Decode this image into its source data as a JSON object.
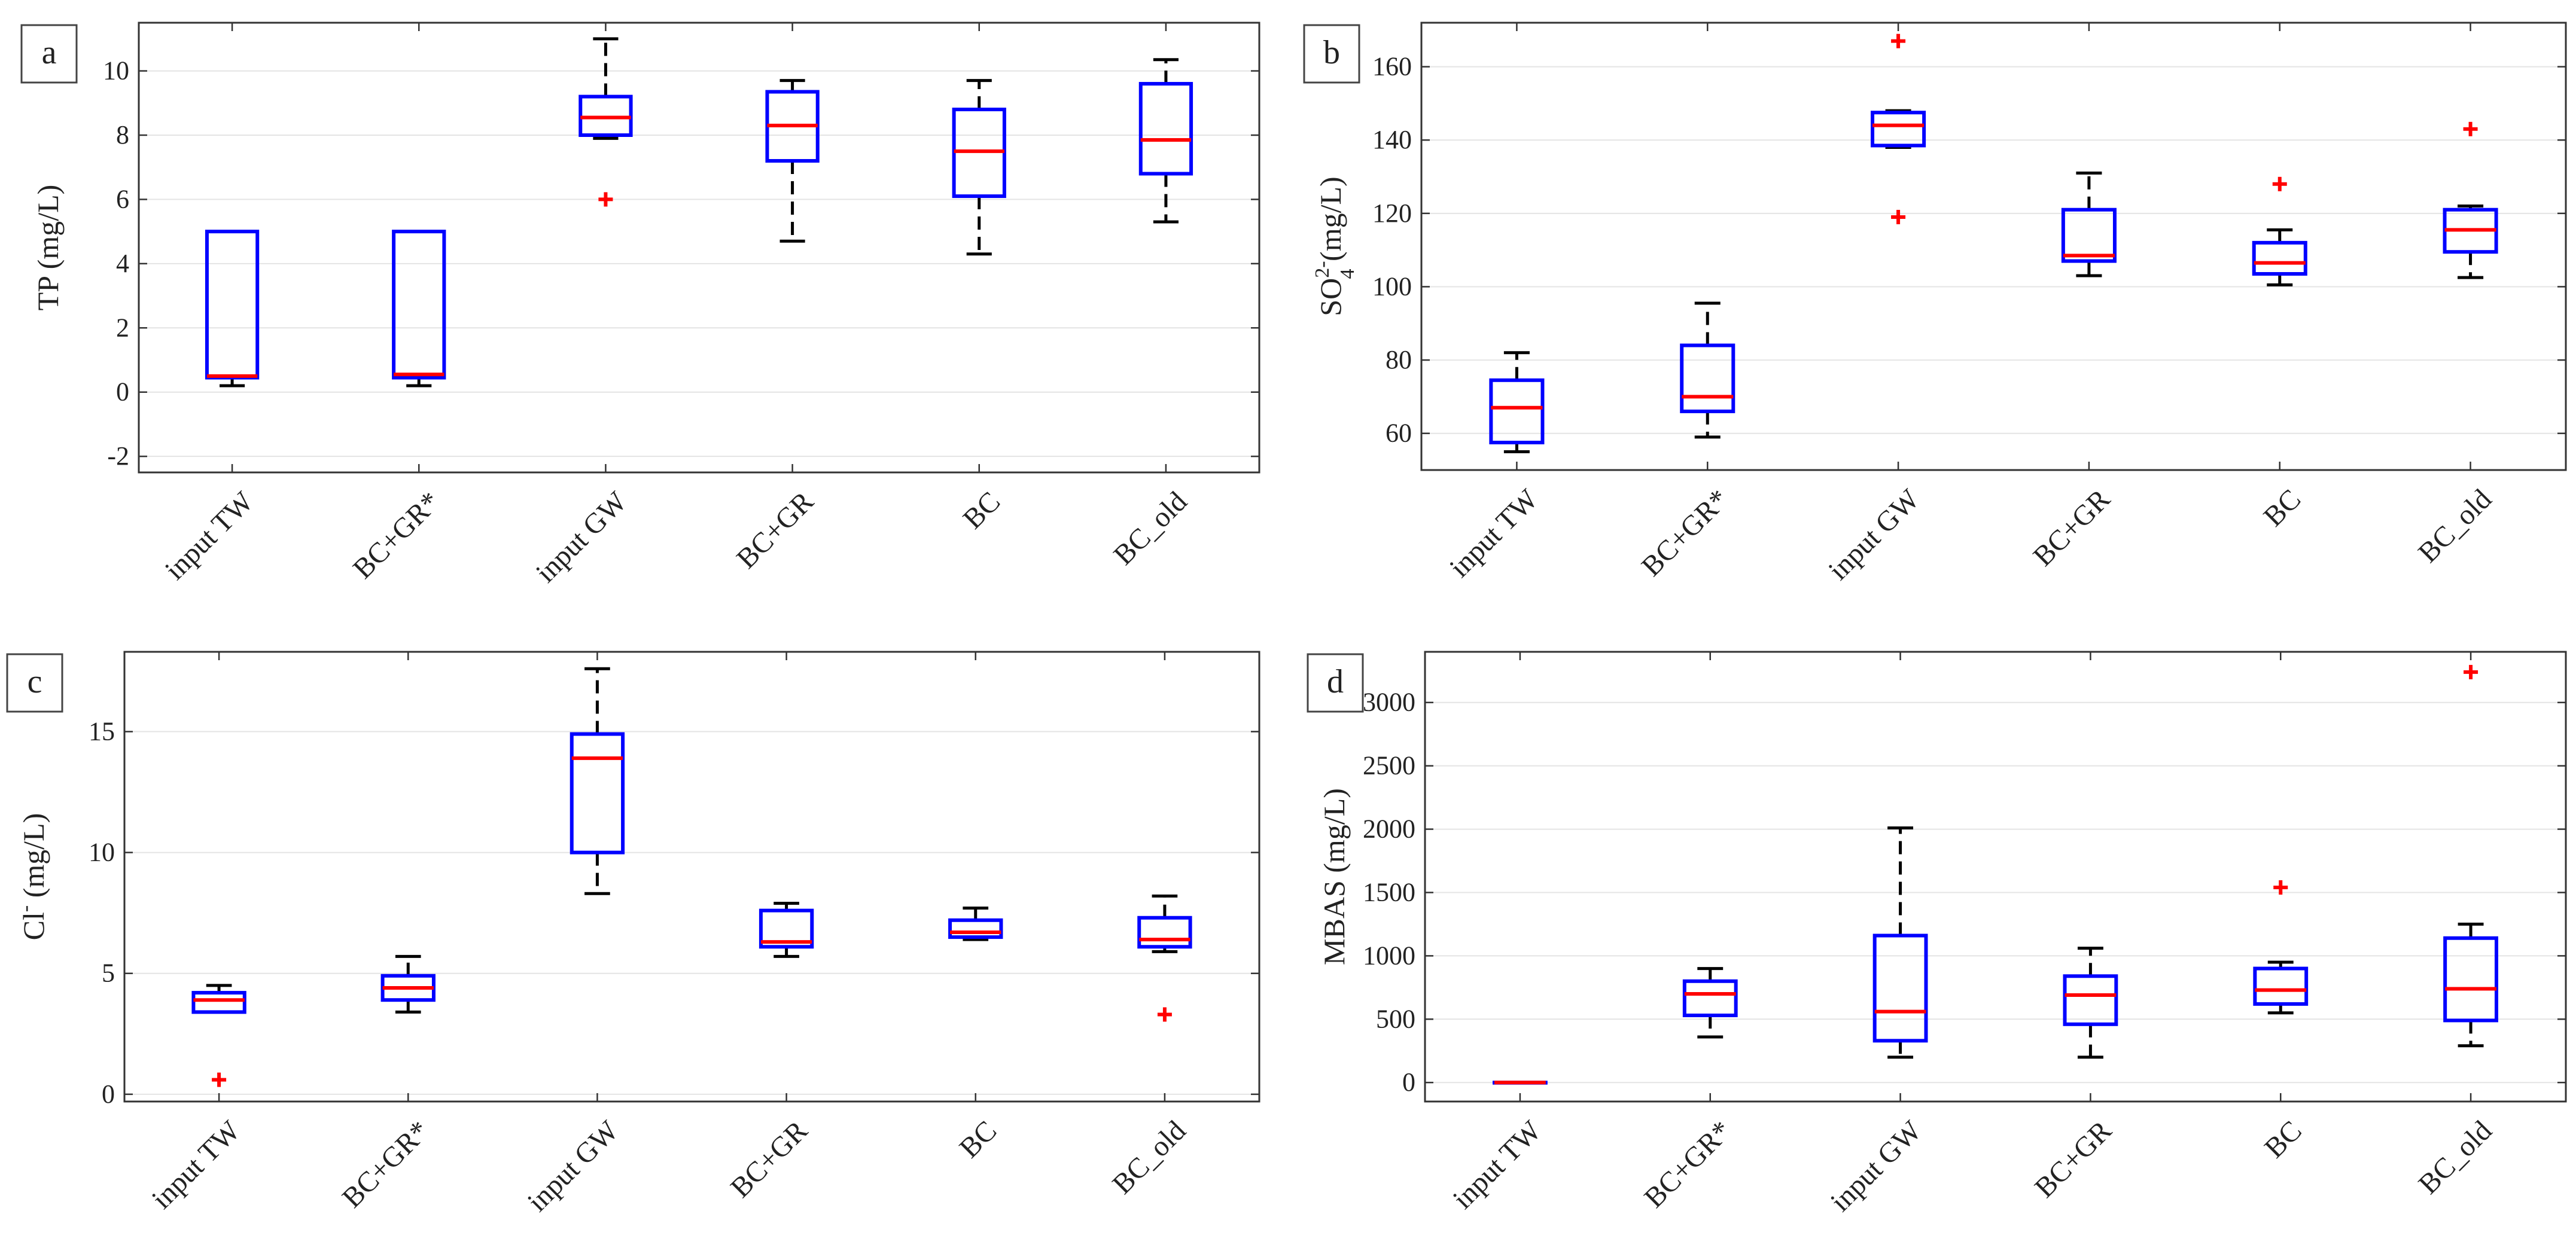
{
  "figure": {
    "colors": {
      "box": "#0000ff",
      "median": "#ff0000",
      "whisker": "#000000",
      "outlier": "#ff0000",
      "grid": "#e4e4e4"
    }
  },
  "chart_data": [
    {
      "type": "box",
      "panel_label": "a",
      "ylabel": "TP (mg/L)",
      "ylim": [
        -2.5,
        11.5
      ],
      "yticks": [
        -2,
        0,
        2,
        4,
        6,
        8,
        10
      ],
      "ytick_labels": [
        "-2",
        "0",
        "2",
        "4",
        "6",
        "8",
        "10"
      ],
      "categories": [
        "input TW",
        "BC+GR*",
        "input GW",
        "BC+GR",
        "BC",
        "BC_old"
      ],
      "boxes": [
        {
          "low": 0.2,
          "q1": 0.45,
          "median": 0.5,
          "q3": 5.0,
          "high": 5.0,
          "outliers": []
        },
        {
          "low": 0.2,
          "q1": 0.45,
          "median": 0.55,
          "q3": 5.0,
          "high": 5.0,
          "outliers": []
        },
        {
          "low": 7.9,
          "q1": 8.0,
          "median": 8.55,
          "q3": 9.2,
          "high": 11.0,
          "outliers": [
            6.0
          ]
        },
        {
          "low": 4.7,
          "q1": 7.2,
          "median": 8.3,
          "q3": 9.35,
          "high": 9.7,
          "outliers": []
        },
        {
          "low": 4.3,
          "q1": 6.1,
          "median": 7.5,
          "q3": 8.8,
          "high": 9.7,
          "outliers": []
        },
        {
          "low": 5.3,
          "q1": 6.8,
          "median": 7.85,
          "q3": 9.6,
          "high": 10.35,
          "outliers": []
        }
      ]
    },
    {
      "type": "box",
      "panel_label": "b",
      "ylabel": "SO",
      "ylabel_sub": "4",
      "ylabel_sup": "2-",
      "ylabel_unit": " (mg/L)",
      "ylim": [
        50,
        172
      ],
      "yticks": [
        60,
        80,
        100,
        120,
        140,
        160
      ],
      "ytick_labels": [
        "60",
        "80",
        "100",
        "120",
        "140",
        "160"
      ],
      "categories": [
        "input TW",
        "BC+GR*",
        "input GW",
        "BC+GR",
        "BC",
        "BC_old"
      ],
      "boxes": [
        {
          "low": 55,
          "q1": 57.5,
          "median": 67,
          "q3": 74.5,
          "high": 82,
          "outliers": []
        },
        {
          "low": 59,
          "q1": 66,
          "median": 70,
          "q3": 84,
          "high": 95.5,
          "outliers": []
        },
        {
          "low": 138,
          "q1": 138.5,
          "median": 144,
          "q3": 147.5,
          "high": 148,
          "outliers": [
            119,
            167
          ]
        },
        {
          "low": 103,
          "q1": 107,
          "median": 108.5,
          "q3": 121,
          "high": 131,
          "outliers": []
        },
        {
          "low": 100.5,
          "q1": 103.5,
          "median": 106.5,
          "q3": 112,
          "high": 115.5,
          "outliers": [
            128
          ]
        },
        {
          "low": 102.5,
          "q1": 109.5,
          "median": 115.5,
          "q3": 121,
          "high": 122,
          "outliers": [
            143
          ]
        }
      ]
    },
    {
      "type": "box",
      "panel_label": "c",
      "ylabel": "Cl",
      "ylabel_sup": "-",
      "ylabel_unit": "  (mg/L)",
      "ylim": [
        -0.3,
        18.3
      ],
      "yticks": [
        0,
        5,
        10,
        15
      ],
      "ytick_labels": [
        "0",
        "5",
        "10",
        "15"
      ],
      "categories": [
        "input TW",
        "BC+GR*",
        "input GW",
        "BC+GR",
        "BC",
        "BC_old"
      ],
      "boxes": [
        {
          "low": 3.4,
          "q1": 3.4,
          "median": 3.9,
          "q3": 4.2,
          "high": 4.5,
          "outliers": [
            0.6
          ]
        },
        {
          "low": 3.4,
          "q1": 3.9,
          "median": 4.4,
          "q3": 4.9,
          "high": 5.7,
          "outliers": []
        },
        {
          "low": 8.3,
          "q1": 10.0,
          "median": 13.9,
          "q3": 14.9,
          "high": 17.6,
          "outliers": []
        },
        {
          "low": 5.7,
          "q1": 6.1,
          "median": 6.3,
          "q3": 7.6,
          "high": 7.9,
          "outliers": []
        },
        {
          "low": 6.4,
          "q1": 6.5,
          "median": 6.7,
          "q3": 7.2,
          "high": 7.7,
          "outliers": []
        },
        {
          "low": 5.9,
          "q1": 6.1,
          "median": 6.4,
          "q3": 7.3,
          "high": 8.2,
          "outliers": [
            3.3
          ]
        }
      ]
    },
    {
      "type": "box",
      "panel_label": "d",
      "ylabel": "MBAS (mg/L)",
      "ylim": [
        -150,
        3400
      ],
      "yticks": [
        0,
        500,
        1000,
        1500,
        2000,
        2500,
        3000
      ],
      "ytick_labels": [
        "0",
        "500",
        "1000",
        "1500",
        "2000",
        "2500",
        "3000"
      ],
      "categories": [
        "input TW",
        "BC+GR*",
        "input GW",
        "BC+GR",
        "BC",
        "BC_old"
      ],
      "boxes": [
        {
          "low": 0,
          "q1": 0,
          "median": 0,
          "q3": 0,
          "high": 0,
          "outliers": []
        },
        {
          "low": 360,
          "q1": 530,
          "median": 700,
          "q3": 800,
          "high": 900,
          "outliers": []
        },
        {
          "low": 200,
          "q1": 330,
          "median": 560,
          "q3": 1160,
          "high": 2010,
          "outliers": []
        },
        {
          "low": 200,
          "q1": 460,
          "median": 690,
          "q3": 840,
          "high": 1060,
          "outliers": []
        },
        {
          "low": 550,
          "q1": 620,
          "median": 730,
          "q3": 900,
          "high": 950,
          "outliers": [
            1540
          ]
        },
        {
          "low": 290,
          "q1": 490,
          "median": 740,
          "q3": 1140,
          "high": 1250,
          "outliers": [
            3240
          ]
        }
      ]
    }
  ]
}
